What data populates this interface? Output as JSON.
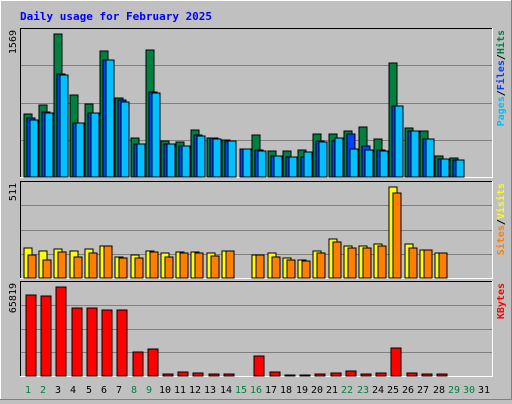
{
  "chart_data": {
    "type": "bar",
    "title": "Daily usage for February 2025",
    "categories": [
      "1",
      "2",
      "3",
      "4",
      "5",
      "6",
      "7",
      "8",
      "9",
      "10",
      "11",
      "12",
      "13",
      "14",
      "15",
      "16",
      "17",
      "18",
      "19",
      "20",
      "21",
      "22",
      "23",
      "24",
      "25",
      "26",
      "27",
      "28",
      "29",
      "30",
      "31"
    ],
    "weekend_days": [
      "1",
      "2",
      "8",
      "9",
      "15",
      "16",
      "22",
      "23",
      "29",
      "30"
    ],
    "panels": [
      {
        "name": "hits-files-pages",
        "ymax": 1569,
        "ymax_label": "1569",
        "legend": [
          {
            "text": "Pages",
            "color": "#00c0ff"
          },
          {
            "text": "Files",
            "color": "#0040ff"
          },
          {
            "text": "Hits",
            "color": "#008040"
          }
        ],
        "series": [
          {
            "name": "Hits",
            "color": "#008040",
            "values": [
              690,
              790,
              1569,
              900,
              800,
              1380,
              870,
              430,
              1390,
              400,
              380,
              520,
              430,
              410,
              null,
              460,
              280,
              280,
              300,
              470,
              470,
              510,
              550,
              420,
              1250,
              540,
              500,
              230,
              210,
              null,
              null
            ]
          },
          {
            "name": "Files",
            "color": "#0040ff",
            "values": [
              650,
              710,
              1130,
              590,
              700,
              1280,
              840,
              360,
              930,
              360,
              340,
              460,
              430,
              400,
              310,
              300,
              230,
              220,
              220,
              400,
              400,
              470,
              340,
              300,
              780,
              510,
              420,
              200,
              190,
              null,
              null
            ]
          },
          {
            "name": "Pages",
            "color": "#00c0ff",
            "values": [
              630,
              700,
              1120,
              590,
              700,
              1280,
              820,
              360,
              920,
              360,
              340,
              450,
              420,
              400,
              310,
              290,
              230,
              220,
              270,
              380,
              430,
              310,
              300,
              290,
              780,
              510,
              420,
              200,
              190,
              null,
              null
            ]
          }
        ]
      },
      {
        "name": "visits-sites",
        "ymax": 511,
        "ymax_label": "511",
        "legend": [
          {
            "text": "Sites",
            "color": "#ff8000"
          },
          {
            "text": "Visits",
            "color": "#ffff00"
          }
        ],
        "series": [
          {
            "name": "Visits",
            "color": "#ffff00",
            "values": [
              170,
              150,
              165,
              150,
              165,
              180,
              120,
              130,
              150,
              140,
              145,
              145,
              140,
              150,
              null,
              130,
              140,
              110,
              100,
              150,
              220,
              180,
              180,
              190,
              511,
              190,
              160,
              140,
              null,
              null,
              null
            ]
          },
          {
            "name": "Sites",
            "color": "#ff8000",
            "values": [
              130,
              100,
              145,
              120,
              140,
              180,
              110,
              110,
              145,
              120,
              140,
              140,
              125,
              150,
              null,
              130,
              120,
              100,
              95,
              140,
              200,
              170,
              170,
              180,
              480,
              170,
              160,
              140,
              null,
              null,
              null
            ]
          }
        ]
      },
      {
        "name": "kbytes",
        "ymax": 65819,
        "ymax_label": "65819",
        "legend": [
          {
            "text": "KBytes",
            "color": "#ff0000"
          }
        ],
        "series": [
          {
            "name": "KBytes",
            "color": "#ff0000",
            "values": [
              60000,
              59000,
              65819,
              50000,
              50000,
              49000,
              49000,
              18000,
              20000,
              1200,
              3000,
              2000,
              1500,
              1500,
              null,
              15000,
              3000,
              1000,
              1000,
              1500,
              2500,
              4000,
              1500,
              2000,
              21000,
              2000,
              1500,
              1500,
              null,
              null,
              null
            ]
          }
        ]
      }
    ]
  }
}
